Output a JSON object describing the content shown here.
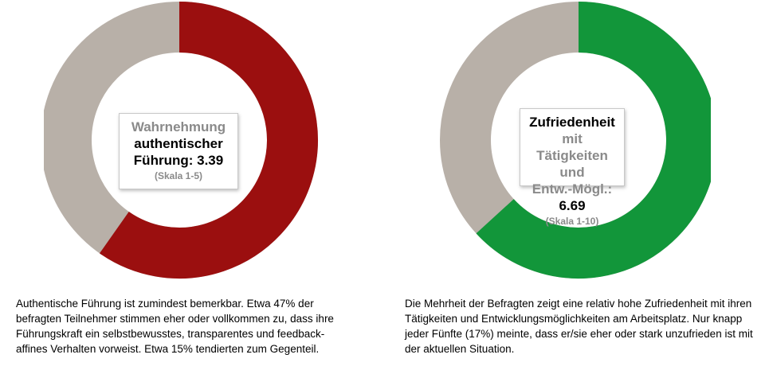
{
  "chart_data": [
    {
      "type": "pie",
      "variant": "donut",
      "value": 3.39,
      "scale_min": 1,
      "scale_max": 5,
      "colors": {
        "value": "#9b0f0f",
        "rest": "#b8b0a8"
      },
      "label": {
        "line1": "Wahrnehmung",
        "line2": "authentischer",
        "line3_prefix": "Führung: ",
        "value_text": "3.39",
        "scale": "(Skala 1-5)"
      }
    },
    {
      "type": "pie",
      "variant": "donut",
      "value": 6.69,
      "scale_min": 1,
      "scale_max": 10,
      "colors": {
        "value": "#12963a",
        "rest": "#b8b0a8"
      },
      "label": {
        "line1_bold": "Zufriedenheit",
        "line1_rest": " mit",
        "line2": "Tätigkeiten und",
        "line3_prefix": "Entw.-Mögl.: ",
        "value_text": "6.69",
        "scale": "(Skala 1-10)"
      }
    }
  ],
  "captions": {
    "left": "Authentische Führung ist zumindest bemerkbar. Etwa 47% der befragten Teilnehmer stimmen eher oder vollkommen zu, dass ihre Führungskraft ein selbstbewusstes, transparentes und feedback-affines Verhalten vorweist. Etwa 15% tendierten zum Gegenteil.",
    "right": "Die Mehrheit der Befragten zeigt eine relativ hohe Zufriedenheit mit ihren Tätigkeiten und Entwicklungsmöglichkeiten am Arbeitsplatz. Nur knapp jeder Fünfte (17%) meinte, dass er/sie eher oder stark unzufrieden ist mit der aktuellen Situation."
  }
}
